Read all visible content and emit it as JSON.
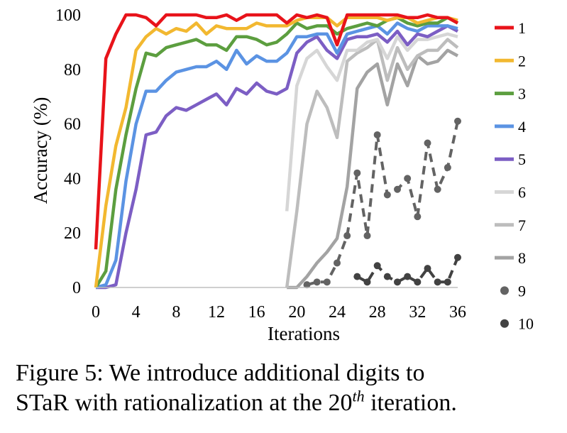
{
  "chart_data": {
    "type": "line",
    "title": "",
    "xlabel": "Iterations",
    "ylabel": "Accuracy (%)",
    "xlim": [
      0,
      36
    ],
    "ylim": [
      0,
      100
    ],
    "xticks": [
      "0",
      "4",
      "8",
      "12",
      "16",
      "20",
      "24",
      "28",
      "32",
      "36"
    ],
    "yticks": [
      "0",
      "20",
      "40",
      "60",
      "80",
      "100"
    ],
    "grid": false,
    "legend_position": "right",
    "series": [
      {
        "name": "1",
        "color": "#e8131a",
        "style": "solid",
        "points": [
          [
            0,
            14
          ],
          [
            1,
            84
          ],
          [
            2,
            93
          ],
          [
            3,
            100
          ],
          [
            4,
            100
          ],
          [
            5,
            99
          ],
          [
            6,
            96
          ],
          [
            7,
            100
          ],
          [
            8,
            100
          ],
          [
            9,
            100
          ],
          [
            10,
            100
          ],
          [
            11,
            99
          ],
          [
            12,
            99
          ],
          [
            13,
            100
          ],
          [
            14,
            98
          ],
          [
            15,
            100
          ],
          [
            16,
            100
          ],
          [
            17,
            100
          ],
          [
            18,
            100
          ],
          [
            19,
            97
          ],
          [
            20,
            100
          ],
          [
            21,
            99
          ],
          [
            22,
            100
          ],
          [
            23,
            99
          ],
          [
            24,
            89
          ],
          [
            25,
            100
          ],
          [
            26,
            100
          ],
          [
            27,
            100
          ],
          [
            28,
            100
          ],
          [
            29,
            100
          ],
          [
            30,
            100
          ],
          [
            31,
            99
          ],
          [
            32,
            99
          ],
          [
            33,
            100
          ],
          [
            34,
            99
          ],
          [
            35,
            99
          ],
          [
            36,
            97
          ]
        ]
      },
      {
        "name": "2",
        "color": "#f2b830",
        "style": "solid",
        "points": [
          [
            0,
            0
          ],
          [
            1,
            30
          ],
          [
            2,
            52
          ],
          [
            3,
            66
          ],
          [
            4,
            87
          ],
          [
            5,
            92
          ],
          [
            6,
            95
          ],
          [
            7,
            93
          ],
          [
            8,
            95
          ],
          [
            9,
            94
          ],
          [
            10,
            97
          ],
          [
            11,
            93
          ],
          [
            12,
            96
          ],
          [
            13,
            95
          ],
          [
            14,
            95
          ],
          [
            15,
            95
          ],
          [
            16,
            97
          ],
          [
            17,
            96
          ],
          [
            18,
            96
          ],
          [
            19,
            96
          ],
          [
            20,
            98
          ],
          [
            21,
            99
          ],
          [
            22,
            99
          ],
          [
            23,
            99
          ],
          [
            24,
            96
          ],
          [
            25,
            99
          ],
          [
            26,
            99
          ],
          [
            27,
            99
          ],
          [
            28,
            99
          ],
          [
            29,
            98
          ],
          [
            30,
            99
          ],
          [
            31,
            99
          ],
          [
            32,
            97
          ],
          [
            33,
            98
          ],
          [
            34,
            99
          ],
          [
            35,
            99
          ],
          [
            36,
            98
          ]
        ]
      },
      {
        "name": "3",
        "color": "#5c9e3f",
        "style": "solid",
        "points": [
          [
            0,
            0
          ],
          [
            1,
            6
          ],
          [
            2,
            36
          ],
          [
            3,
            56
          ],
          [
            4,
            73
          ],
          [
            5,
            86
          ],
          [
            6,
            85
          ],
          [
            7,
            88
          ],
          [
            8,
            89
          ],
          [
            9,
            90
          ],
          [
            10,
            91
          ],
          [
            11,
            89
          ],
          [
            12,
            89
          ],
          [
            13,
            87
          ],
          [
            14,
            92
          ],
          [
            15,
            92
          ],
          [
            16,
            91
          ],
          [
            17,
            89
          ],
          [
            18,
            90
          ],
          [
            19,
            93
          ],
          [
            20,
            97
          ],
          [
            21,
            95
          ],
          [
            22,
            96
          ],
          [
            23,
            96
          ],
          [
            24,
            93
          ],
          [
            25,
            95
          ],
          [
            26,
            96
          ],
          [
            27,
            97
          ],
          [
            28,
            96
          ],
          [
            29,
            98
          ],
          [
            30,
            99
          ],
          [
            31,
            97
          ],
          [
            32,
            96
          ],
          [
            33,
            97
          ],
          [
            34,
            97
          ],
          [
            35,
            99
          ],
          [
            36,
            97
          ]
        ]
      },
      {
        "name": "4",
        "color": "#5b93e3",
        "style": "solid",
        "points": [
          [
            0,
            0
          ],
          [
            1,
            1
          ],
          [
            2,
            10
          ],
          [
            3,
            39
          ],
          [
            4,
            60
          ],
          [
            5,
            72
          ],
          [
            6,
            72
          ],
          [
            7,
            76
          ],
          [
            8,
            79
          ],
          [
            9,
            80
          ],
          [
            10,
            81
          ],
          [
            11,
            81
          ],
          [
            12,
            83
          ],
          [
            13,
            80
          ],
          [
            14,
            87
          ],
          [
            15,
            82
          ],
          [
            16,
            85
          ],
          [
            17,
            83
          ],
          [
            18,
            83
          ],
          [
            19,
            86
          ],
          [
            20,
            92
          ],
          [
            21,
            92
          ],
          [
            22,
            93
          ],
          [
            23,
            93
          ],
          [
            24,
            86
          ],
          [
            25,
            93
          ],
          [
            26,
            94
          ],
          [
            27,
            95
          ],
          [
            28,
            96
          ],
          [
            29,
            93
          ],
          [
            30,
            97
          ],
          [
            31,
            95
          ],
          [
            32,
            94
          ],
          [
            33,
            96
          ],
          [
            34,
            96
          ],
          [
            35,
            96
          ],
          [
            36,
            95
          ]
        ]
      },
      {
        "name": "5",
        "color": "#7c5ec4",
        "style": "solid",
        "points": [
          [
            0,
            0
          ],
          [
            1,
            0
          ],
          [
            2,
            1
          ],
          [
            3,
            20
          ],
          [
            4,
            36
          ],
          [
            5,
            56
          ],
          [
            6,
            57
          ],
          [
            7,
            63
          ],
          [
            8,
            66
          ],
          [
            9,
            65
          ],
          [
            10,
            67
          ],
          [
            11,
            69
          ],
          [
            12,
            71
          ],
          [
            13,
            67
          ],
          [
            14,
            73
          ],
          [
            15,
            71
          ],
          [
            16,
            75
          ],
          [
            17,
            72
          ],
          [
            18,
            71
          ],
          [
            19,
            73
          ],
          [
            20,
            86
          ],
          [
            21,
            90
          ],
          [
            22,
            92
          ],
          [
            23,
            87
          ],
          [
            24,
            84
          ],
          [
            25,
            91
          ],
          [
            26,
            92
          ],
          [
            27,
            92
          ],
          [
            28,
            93
          ],
          [
            29,
            90
          ],
          [
            30,
            94
          ],
          [
            31,
            89
          ],
          [
            32,
            93
          ],
          [
            33,
            92
          ],
          [
            34,
            94
          ],
          [
            35,
            96
          ],
          [
            36,
            94
          ]
        ]
      },
      {
        "name": "6",
        "color": "#d6d6d6",
        "style": "solid",
        "points": [
          [
            19,
            28
          ],
          [
            20,
            74
          ],
          [
            21,
            84
          ],
          [
            22,
            87
          ],
          [
            23,
            81
          ],
          [
            24,
            76
          ],
          [
            25,
            87
          ],
          [
            26,
            87
          ],
          [
            27,
            90
          ],
          [
            28,
            91
          ],
          [
            29,
            84
          ],
          [
            30,
            92
          ],
          [
            31,
            87
          ],
          [
            32,
            91
          ],
          [
            33,
            91
          ],
          [
            34,
            92
          ],
          [
            35,
            93
          ],
          [
            36,
            92
          ]
        ]
      },
      {
        "name": "7",
        "color": "#bdbdbd",
        "style": "solid",
        "points": [
          [
            19,
            0
          ],
          [
            20,
            28
          ],
          [
            21,
            60
          ],
          [
            22,
            72
          ],
          [
            23,
            66
          ],
          [
            24,
            55
          ],
          [
            25,
            83
          ],
          [
            26,
            86
          ],
          [
            27,
            88
          ],
          [
            28,
            91
          ],
          [
            29,
            76
          ],
          [
            30,
            88
          ],
          [
            31,
            80
          ],
          [
            32,
            85
          ],
          [
            33,
            87
          ],
          [
            34,
            87
          ],
          [
            35,
            91
          ],
          [
            36,
            88
          ]
        ]
      },
      {
        "name": "8",
        "color": "#a3a3a3",
        "style": "solid",
        "points": [
          [
            19,
            0
          ],
          [
            20,
            0
          ],
          [
            21,
            4
          ],
          [
            22,
            9
          ],
          [
            23,
            13
          ],
          [
            24,
            18
          ],
          [
            25,
            37
          ],
          [
            26,
            73
          ],
          [
            27,
            79
          ],
          [
            28,
            82
          ],
          [
            29,
            67
          ],
          [
            30,
            82
          ],
          [
            31,
            74
          ],
          [
            32,
            85
          ],
          [
            33,
            82
          ],
          [
            34,
            83
          ],
          [
            35,
            87
          ],
          [
            36,
            85
          ]
        ]
      },
      {
        "name": "9",
        "color": "#636363",
        "style": "dashed",
        "points": [
          [
            21,
            1
          ],
          [
            22,
            2
          ],
          [
            23,
            2
          ],
          [
            24,
            9
          ],
          [
            25,
            19
          ],
          [
            26,
            42
          ],
          [
            27,
            19
          ],
          [
            28,
            56
          ],
          [
            29,
            34
          ],
          [
            30,
            36
          ],
          [
            31,
            40
          ],
          [
            32,
            26
          ],
          [
            33,
            53
          ],
          [
            34,
            36
          ],
          [
            35,
            44
          ],
          [
            36,
            61
          ]
        ]
      },
      {
        "name": "10",
        "color": "#424242",
        "style": "dashed",
        "points": [
          [
            26,
            4
          ],
          [
            27,
            2
          ],
          [
            28,
            8
          ],
          [
            29,
            4
          ],
          [
            30,
            2
          ],
          [
            31,
            4
          ],
          [
            32,
            2
          ],
          [
            33,
            7
          ],
          [
            34,
            2
          ],
          [
            35,
            2
          ],
          [
            36,
            11
          ]
        ]
      }
    ]
  },
  "caption": {
    "line1": "Figure 5:  We introduce additional digits to",
    "line2_pre": "STaR with rationalization at the 20",
    "line2_sup": "th",
    "line2_post": " iteration."
  }
}
